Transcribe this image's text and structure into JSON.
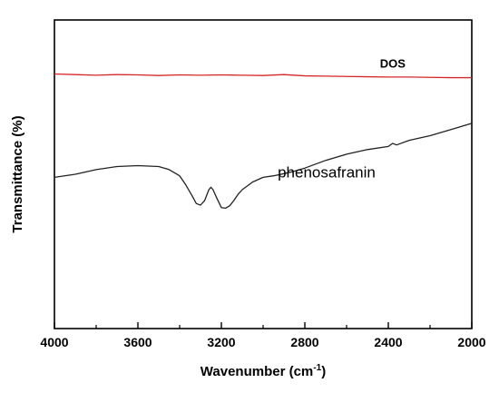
{
  "chart_data": {
    "type": "line",
    "xlabel": "Wavenumber (cm",
    "xlabel_sup": "-1",
    "xlabel_close": ")",
    "ylabel": "Transmittance (%)",
    "xlim": [
      4000,
      2000
    ],
    "x_reversed": true,
    "ylim": [
      0,
      100
    ],
    "x_ticks": [
      4000,
      3600,
      3200,
      2800,
      2400,
      2000
    ],
    "x_tick_labels": [
      "4000",
      "3600",
      "3200",
      "2800",
      "2400",
      "2000"
    ],
    "y_tick_labels_shown": false,
    "grid": false,
    "series": [
      {
        "name": "DOS",
        "color": "#d62728",
        "x": [
          4000,
          3900,
          3800,
          3700,
          3600,
          3500,
          3400,
          3300,
          3200,
          3100,
          3000,
          2900,
          2800,
          2700,
          2600,
          2500,
          2400,
          2300,
          2200,
          2100,
          2000
        ],
        "y": [
          82.5,
          82.3,
          82.1,
          82.3,
          82.2,
          82.0,
          82.2,
          82.1,
          82.2,
          82.1,
          82.0,
          82.3,
          81.9,
          81.8,
          81.7,
          81.6,
          81.5,
          81.5,
          81.4,
          81.3,
          81.3
        ]
      },
      {
        "name": "phenosafranin",
        "color": "#222222",
        "x": [
          4000,
          3900,
          3800,
          3700,
          3600,
          3500,
          3450,
          3400,
          3370,
          3340,
          3320,
          3300,
          3280,
          3260,
          3250,
          3240,
          3220,
          3200,
          3180,
          3160,
          3140,
          3120,
          3100,
          3050,
          3000,
          2950,
          2900,
          2850,
          2800,
          2700,
          2600,
          2500,
          2400,
          2380,
          2360,
          2300,
          2200,
          2100,
          2000
        ],
        "y": [
          49.0,
          50.0,
          51.5,
          52.5,
          52.8,
          52.5,
          51.5,
          49.5,
          46.5,
          43.0,
          40.5,
          40.0,
          41.5,
          45.0,
          45.8,
          45.0,
          42.0,
          39.2,
          39.0,
          39.8,
          41.5,
          43.5,
          45.0,
          47.5,
          49.0,
          49.5,
          50.2,
          51.0,
          52.0,
          54.5,
          56.5,
          58.0,
          59.0,
          60.0,
          59.5,
          61.0,
          62.5,
          64.5,
          66.5
        ]
      }
    ],
    "annotations": [
      {
        "text": "DOS",
        "x": 2440,
        "y": 84.5,
        "bold": true
      },
      {
        "text": "phenosafranin",
        "x": 2930,
        "y": 49.0,
        "bold": false
      }
    ]
  }
}
